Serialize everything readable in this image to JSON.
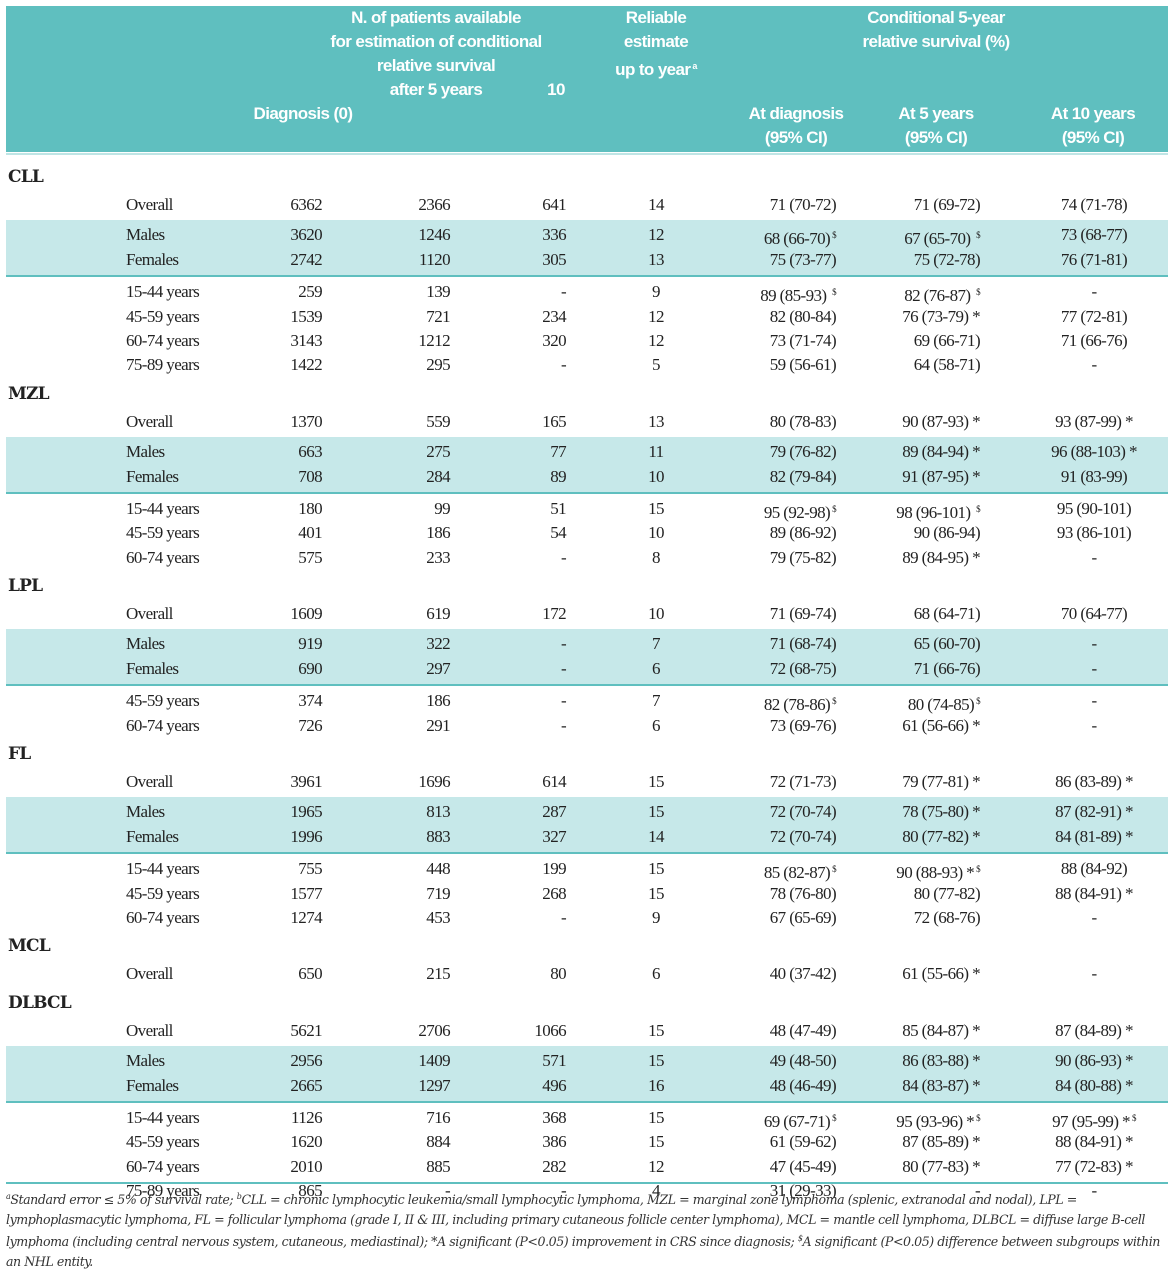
{
  "header": {
    "n_patients": "N. of patients available for estimation of conditional relative survival",
    "n_line1": "N. of patients available",
    "n_line2": "for estimation of conditional",
    "n_line3": "relative survival",
    "n_line4": "after 5 years",
    "col_10": "10",
    "diagnosis": "Diagnosis (0)",
    "reliable_1": "Reliable",
    "reliable_2": "estimate",
    "reliable_3": "up to year",
    "reliable_sup": "a",
    "crs_1": "Conditional 5-year",
    "crs_2": "relative survival (%)",
    "at_diag": "At diagnosis",
    "at_5": "At 5 years",
    "at_10": "At 10 years",
    "ci": "(95% CI)"
  },
  "entities": [
    {
      "name": "CLL",
      "blocks": [
        {
          "band": false,
          "rows": [
            [
              "Overall",
              "6362",
              "2366",
              "641",
              "14",
              "71 (70-72)",
              "71 (69-72)",
              "74 (71-78)"
            ]
          ]
        },
        {
          "band": true,
          "rows": [
            [
              "Males",
              "3620",
              "1246",
              "336",
              "12",
              "68 (66-70)$",
              "67 (65-70) $",
              "73 (68-77)"
            ],
            [
              "Females",
              "2742",
              "1120",
              "305",
              "13",
              "75 (73-77)",
              "75 (72-78)",
              "76 (71-81)"
            ]
          ]
        },
        {
          "band": false,
          "rows": [
            [
              "15-44 years",
              "259",
              "139",
              "-",
              "9",
              "89 (85-93) $",
              "82 (76-87) $",
              "-"
            ],
            [
              "45-59 years",
              "1539",
              "721",
              "234",
              "12",
              "82 (80-84)",
              "76 (73-79) *",
              "77 (72-81)"
            ],
            [
              "60-74 years",
              "3143",
              "1212",
              "320",
              "12",
              "73 (71-74)",
              "69 (66-71)",
              "71 (66-76)"
            ],
            [
              "75-89 years",
              "1422",
              "295",
              "-",
              "5",
              "59 (56-61)",
              "64 (58-71)",
              "-"
            ]
          ]
        }
      ]
    },
    {
      "name": "MZL",
      "blocks": [
        {
          "band": false,
          "rows": [
            [
              "Overall",
              "1370",
              "559",
              "165",
              "13",
              "80 (78-83)",
              "90 (87-93) *",
              "93 (87-99) *"
            ]
          ]
        },
        {
          "band": true,
          "rows": [
            [
              "Males",
              "663",
              "275",
              "77",
              "11",
              "79 (76-82)",
              "89 (84-94) *",
              "96 (88-103) *"
            ],
            [
              "Females",
              "708",
              "284",
              "89",
              "10",
              "82 (79-84)",
              "91 (87-95) *",
              "91 (83-99)"
            ]
          ]
        },
        {
          "band": false,
          "rows": [
            [
              "15-44 years",
              "180",
              "99",
              "51",
              "15",
              "95 (92-98)$",
              "98 (96-101) $",
              "95 (90-101)"
            ],
            [
              "45-59 years",
              "401",
              "186",
              "54",
              "10",
              "89 (86-92)",
              "90 (86-94)",
              "93 (86-101)"
            ],
            [
              "60-74 years",
              "575",
              "233",
              "-",
              "8",
              "79 (75-82)",
              "89 (84-95) *",
              "-"
            ]
          ]
        }
      ]
    },
    {
      "name": "LPL",
      "blocks": [
        {
          "band": false,
          "rows": [
            [
              "Overall",
              "1609",
              "619",
              "172",
              "10",
              "71 (69-74)",
              "68 (64-71)",
              "70 (64-77)"
            ]
          ]
        },
        {
          "band": true,
          "rows": [
            [
              "Males",
              "919",
              "322",
              "-",
              "7",
              "71 (68-74)",
              "65 (60-70)",
              "-"
            ],
            [
              "Females",
              "690",
              "297",
              "-",
              "6",
              "72 (68-75)",
              "71 (66-76)",
              "-"
            ]
          ]
        },
        {
          "band": false,
          "rows": [
            [
              "45-59 years",
              "374",
              "186",
              "-",
              "7",
              "82 (78-86)$",
              "80 (74-85)$",
              "-"
            ],
            [
              "60-74 years",
              "726",
              "291",
              "-",
              "6",
              "73 (69-76)",
              "61 (56-66) *",
              "-"
            ]
          ]
        }
      ]
    },
    {
      "name": "FL",
      "blocks": [
        {
          "band": false,
          "rows": [
            [
              "Overall",
              "3961",
              "1696",
              "614",
              "15",
              "72 (71-73)",
              "79 (77-81) *",
              "86 (83-89) *"
            ]
          ]
        },
        {
          "band": true,
          "rows": [
            [
              "Males",
              "1965",
              "813",
              "287",
              "15",
              "72 (70-74)",
              "78 (75-80) *",
              "87 (82-91) *"
            ],
            [
              "Females",
              "1996",
              "883",
              "327",
              "14",
              "72 (70-74)",
              "80 (77-82) *",
              "84 (81-89) *"
            ]
          ]
        },
        {
          "band": false,
          "rows": [
            [
              "15-44 years",
              "755",
              "448",
              "199",
              "15",
              "85 (82-87)$",
              "90 (88-93) *$",
              "88 (84-92)"
            ],
            [
              "45-59 years",
              "1577",
              "719",
              "268",
              "15",
              "78 (76-80)",
              "80 (77-82)",
              "88 (84-91) *"
            ],
            [
              "60-74 years",
              "1274",
              "453",
              "-",
              "9",
              "67 (65-69)",
              "72 (68-76)",
              "-"
            ]
          ]
        }
      ]
    },
    {
      "name": "MCL",
      "blocks": [
        {
          "band": false,
          "rows": [
            [
              "Overall",
              "650",
              "215",
              "80",
              "6",
              "40 (37-42)",
              "61 (55-66) *",
              "-"
            ]
          ]
        }
      ]
    },
    {
      "name": "DLBCL",
      "blocks": [
        {
          "band": false,
          "rows": [
            [
              "Overall",
              "5621",
              "2706",
              "1066",
              "15",
              "48 (47-49)",
              "85 (84-87) *",
              "87 (84-89) *"
            ]
          ]
        },
        {
          "band": true,
          "rows": [
            [
              "Males",
              "2956",
              "1409",
              "571",
              "15",
              "49 (48-50)",
              "86 (83-88) *",
              "90 (86-93) *"
            ],
            [
              "Females",
              "2665",
              "1297",
              "496",
              "16",
              "48 (46-49)",
              "84 (83-87) *",
              "84 (80-88) *"
            ]
          ]
        },
        {
          "band": false,
          "rows": [
            [
              "15-44 years",
              "1126",
              "716",
              "368",
              "15",
              "69 (67-71)$",
              "95 (93-96) *$",
              "97 (95-99) *$"
            ],
            [
              "45-59 years",
              "1620",
              "884",
              "386",
              "15",
              "61 (59-62)",
              "87 (85-89) *",
              "88 (84-91) *"
            ],
            [
              "60-74 years",
              "2010",
              "885",
              "282",
              "12",
              "47 (45-49)",
              "80 (77-83) *",
              "77 (72-83) *"
            ],
            [
              "75-89 years",
              "865",
              "-",
              "-",
              "4",
              "31 (29-33)",
              "-",
              "-"
            ]
          ]
        }
      ]
    }
  ],
  "footnote": "aStandard error ≤ 5% of survival rate; bCLL = chronic lymphocytic leukemia/small lymphocytic lymphoma, MZL = marginal zone lymphoma (splenic, extranodal and nodal), LPL = lymphoplasmacytic lymphoma, FL = follicular lymphoma (grade I, II & III, including primary cutaneous follicle center lymphoma), MCL = mantle cell lymphoma, DLBCL = diffuse large B-cell lymphoma (including central nervous system, cutaneous, mediastinal); *A significant (P<0.05) improvement in CRS since diagnosis; $A significant (P<0.05) difference between subgroups within an NHL entity."
}
